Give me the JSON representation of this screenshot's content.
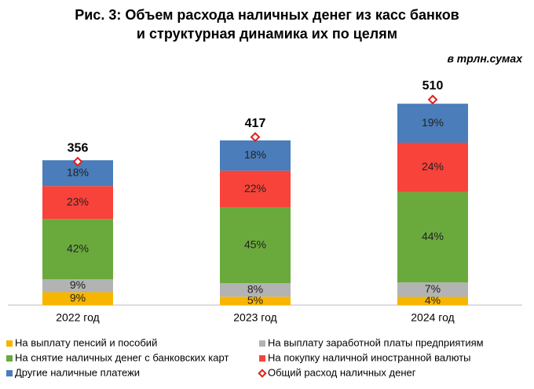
{
  "chart_data": {
    "type": "stacked_bar",
    "title_lines": [
      "Рис. 3: Объем расхода наличных денег из касс банков",
      "и структурная динамика их по целям"
    ],
    "unit_label": "в трлн.сумах",
    "categories": [
      "2022 год",
      "2023 год",
      "2024 год"
    ],
    "series": [
      {
        "name": "На выплату пенсий и пособий",
        "color": "#f7b500",
        "values": [
          9,
          5,
          4
        ],
        "value_labels": [
          "9%",
          "5%",
          "4%"
        ]
      },
      {
        "name": "На выплату заработной платы предприятиям",
        "color": "#b3b3b3",
        "values": [
          9,
          8,
          7
        ],
        "value_labels": [
          "9%",
          "8%",
          "7%"
        ]
      },
      {
        "name": "На снятие наличных денег с банковских карт",
        "color": "#6aaa3c",
        "values": [
          42,
          45,
          44
        ],
        "value_labels": [
          "42%",
          "45%",
          "44%"
        ]
      },
      {
        "name": "На покупку наличной иностранной валюты",
        "color": "#f8433a",
        "values": [
          23,
          22,
          24
        ],
        "value_labels": [
          "23%",
          "22%",
          "24%"
        ]
      },
      {
        "name": "Другие наличные платежи",
        "color": "#4a7dba",
        "values": [
          18,
          18,
          19
        ],
        "value_labels": [
          "18%",
          "18%",
          "19%"
        ]
      }
    ],
    "total": {
      "name": "Общий расход наличных денег",
      "color": "#e0201b",
      "values": [
        356,
        417,
        510
      ]
    }
  }
}
